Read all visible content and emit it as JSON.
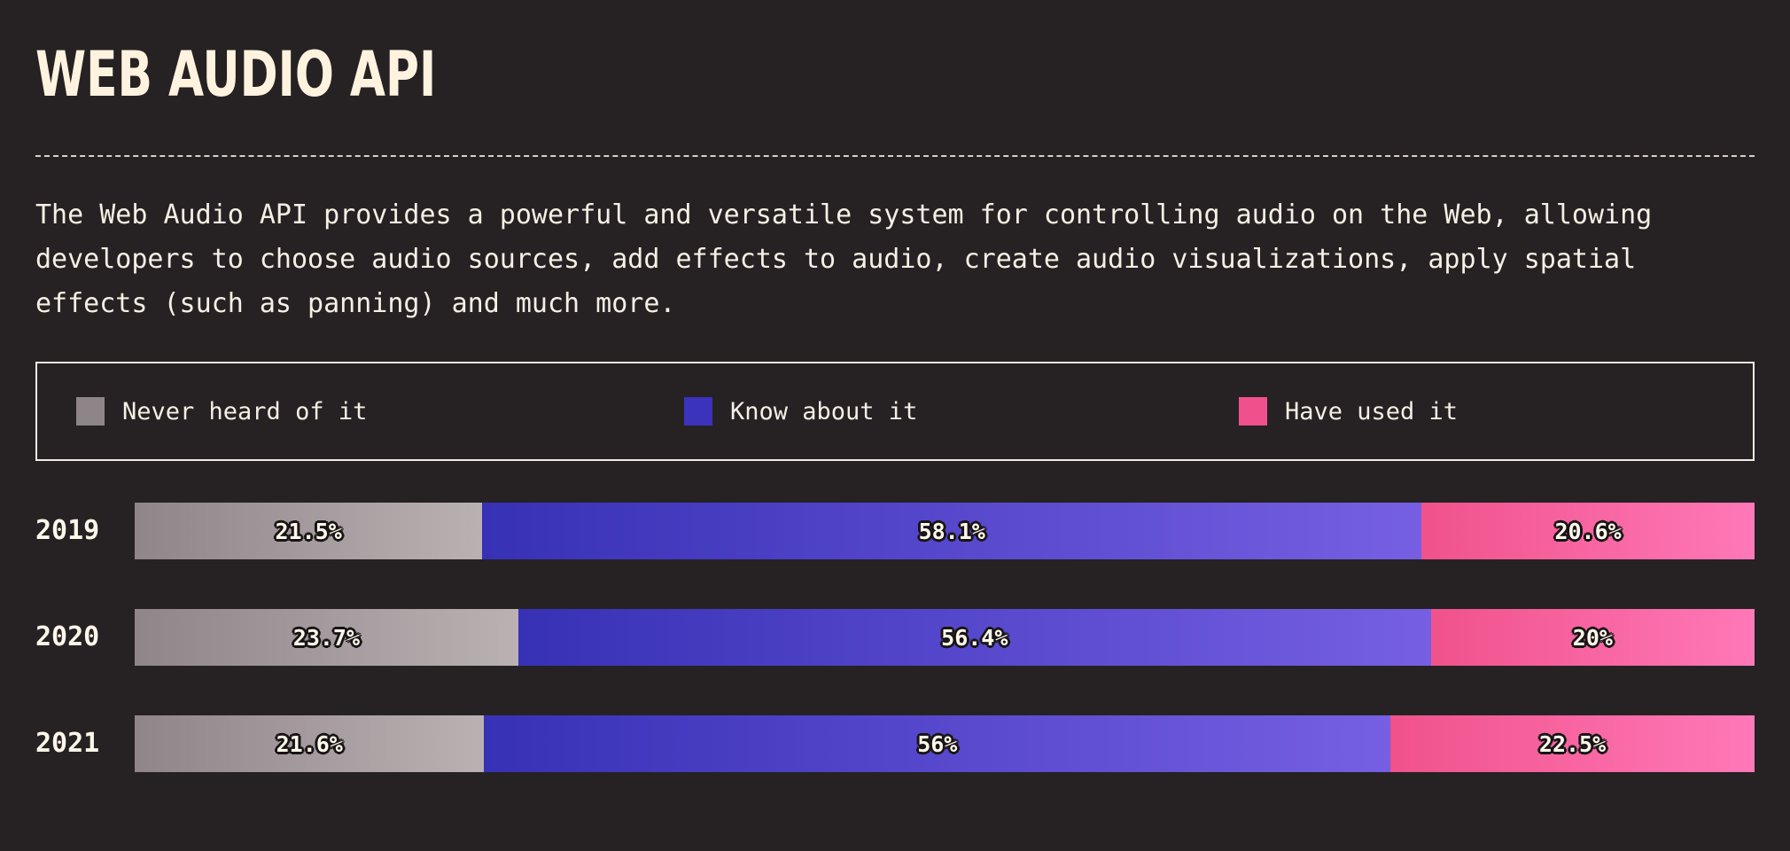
{
  "header": {
    "title": "WEB AUDIO API"
  },
  "description": "The Web Audio API provides a powerful and versatile system for controlling audio on the Web, allowing developers to choose audio sources, add effects to audio, create audio visualizations, apply spatial effects (such as panning) and much more.",
  "colors": {
    "never": "#908589",
    "never_end": "#bab1b3",
    "know": "#3731b6",
    "know_end": "#765fe2",
    "used": "#f0528b",
    "used_end": "#ff78b8"
  },
  "legend": [
    {
      "label": "Never heard of it",
      "color": "#8e8589"
    },
    {
      "label": "Know about it",
      "color": "#3b33bc"
    },
    {
      "label": "Have used it",
      "color": "#f0508c"
    }
  ],
  "chart_data": {
    "type": "bar",
    "orientation": "horizontal",
    "stacked": true,
    "categories": [
      "2019",
      "2020",
      "2021"
    ],
    "series": [
      {
        "name": "Never heard of it",
        "values": [
          21.5,
          23.7,
          21.6
        ],
        "labels": [
          "21.5%",
          "23.7%",
          "21.6%"
        ]
      },
      {
        "name": "Know about it",
        "values": [
          58.1,
          56.4,
          56
        ],
        "labels": [
          "58.1%",
          "56.4%",
          "56%"
        ]
      },
      {
        "name": "Have used it",
        "values": [
          20.6,
          20,
          22.5
        ],
        "labels": [
          "20.6%",
          "20%",
          "22.5%"
        ]
      }
    ],
    "xlim": [
      0,
      100
    ],
    "grid": false,
    "legend_position": "top"
  }
}
